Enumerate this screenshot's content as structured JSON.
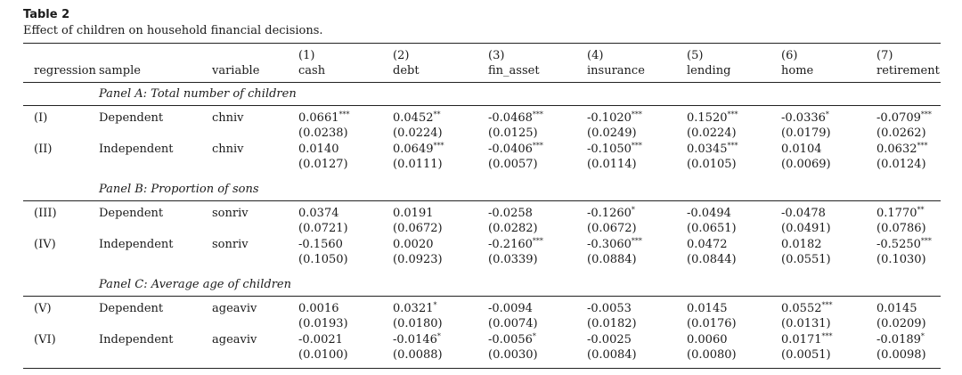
{
  "table_number": "Table 2",
  "table_title": "Effect of children on household financial decisions.",
  "headers": {
    "regression": "regression",
    "sample": "sample",
    "variable": "variable",
    "columns": [
      {
        "num": "(1)",
        "name": "cash"
      },
      {
        "num": "(2)",
        "name": "debt"
      },
      {
        "num": "(3)",
        "name": "fin_asset"
      },
      {
        "num": "(4)",
        "name": "insurance"
      },
      {
        "num": "(5)",
        "name": "lending"
      },
      {
        "num": "(6)",
        "name": "home"
      },
      {
        "num": "(7)",
        "name": "retirement"
      }
    ]
  },
  "panels": [
    {
      "title": "Panel A: Total number of children",
      "rows": [
        {
          "reg": "(I)",
          "sample": "Dependent",
          "variable": "chniv",
          "coef": [
            "0.0661",
            "0.0452",
            "-0.0468",
            "-0.1020",
            "0.1520",
            "-0.0336",
            "-0.0709"
          ],
          "stars": [
            "***",
            "**",
            "***",
            "***",
            "***",
            "*",
            "***"
          ],
          "se": [
            "(0.0238)",
            "(0.0224)",
            "(0.0125)",
            "(0.0249)",
            "(0.0224)",
            "(0.0179)",
            "(0.0262)"
          ]
        },
        {
          "reg": "(II)",
          "sample": "Independent",
          "variable": "chniv",
          "coef": [
            "0.0140",
            "0.0649",
            "-0.0406",
            "-0.1050",
            "0.0345",
            "0.0104",
            "0.0632"
          ],
          "stars": [
            "",
            "***",
            "***",
            "***",
            "***",
            "",
            "***"
          ],
          "se": [
            "(0.0127)",
            "(0.0111)",
            "(0.0057)",
            "(0.0114)",
            "(0.0105)",
            "(0.0069)",
            "(0.0124)"
          ]
        }
      ]
    },
    {
      "title": "Panel B: Proportion of sons",
      "rows": [
        {
          "reg": "(III)",
          "sample": "Dependent",
          "variable": "sonriv",
          "coef": [
            "0.0374",
            "0.0191",
            "-0.0258",
            "-0.1260",
            "-0.0494",
            "-0.0478",
            "0.1770"
          ],
          "stars": [
            "",
            "",
            "",
            "*",
            "",
            "",
            "**"
          ],
          "se": [
            "(0.0721)",
            "(0.0672)",
            "(0.0282)",
            "(0.0672)",
            "(0.0651)",
            "(0.0491)",
            "(0.0786)"
          ]
        },
        {
          "reg": "(IV)",
          "sample": "Independent",
          "variable": "sonriv",
          "coef": [
            "-0.1560",
            "0.0020",
            "-0.2160",
            "-0.3060",
            "0.0472",
            "0.0182",
            "-0.5250"
          ],
          "stars": [
            "",
            "",
            "***",
            "***",
            "",
            "",
            "***"
          ],
          "se": [
            "(0.1050)",
            "(0.0923)",
            "(0.0339)",
            "(0.0884)",
            "(0.0844)",
            "(0.0551)",
            "(0.1030)"
          ]
        }
      ]
    },
    {
      "title": "Panel C: Average age of children",
      "rows": [
        {
          "reg": "(V)",
          "sample": "Dependent",
          "variable": "ageaviv",
          "coef": [
            "0.0016",
            "0.0321",
            "-0.0094",
            "-0.0053",
            "0.0145",
            "0.0552",
            "0.0145"
          ],
          "stars": [
            "",
            "*",
            "",
            "",
            "",
            "***",
            ""
          ],
          "se": [
            "(0.0193)",
            "(0.0180)",
            "(0.0074)",
            "(0.0182)",
            "(0.0176)",
            "(0.0131)",
            "(0.0209)"
          ]
        },
        {
          "reg": "(VI)",
          "sample": "Independent",
          "variable": "ageaviv",
          "coef": [
            "-0.0021",
            "-0.0146",
            "-0.0056",
            "-0.0025",
            "0.0060",
            "0.0171",
            "-0.0189"
          ],
          "stars": [
            "",
            "*",
            "*",
            "",
            "",
            "***",
            "*"
          ],
          "se": [
            "(0.0100)",
            "(0.0088)",
            "(0.0030)",
            "(0.0084)",
            "(0.0080)",
            "(0.0051)",
            "(0.0098)"
          ]
        }
      ]
    }
  ]
}
